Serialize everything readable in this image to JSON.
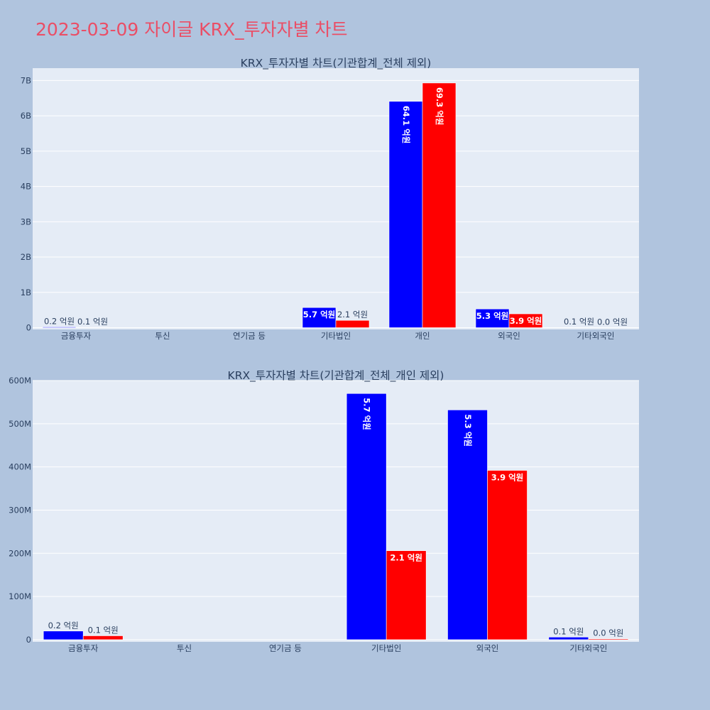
{
  "page": {
    "title": "2023-03-09 자이글 KRX_투자자별 차트"
  },
  "colors": {
    "buy": "#0000ff",
    "sell": "#ff0000",
    "plot_bg": "#e5ecf6",
    "paper_bg": "#b0c4de",
    "title": "#ea4e66",
    "text": "#2a3f5f"
  },
  "chart_data": [
    {
      "type": "bar",
      "title": "KRX_투자자별 차트(기관합계_전체 제외)",
      "categories": [
        "금융투자",
        "투신",
        "연기금 등",
        "기타법인",
        "개인",
        "외국인",
        "기타외국인"
      ],
      "series": [
        {
          "values": [
            20000000,
            0,
            0,
            570000000,
            6410000000,
            530000000,
            6000000
          ],
          "labels": [
            "0.2 억원",
            "",
            "",
            "5.7 억원",
            "64.1 억원",
            "5.3 억원",
            "0.1 억원"
          ]
        },
        {
          "values": [
            9000000,
            0,
            0,
            207000000,
            6930000000,
            392000000,
            2000000
          ],
          "labels": [
            "0.1 억원",
            "",
            "",
            "2.1 억원",
            "69.3 억원",
            "3.9 억원",
            "0.0 억원"
          ]
        }
      ],
      "yticks": [
        0,
        1000000000,
        2000000000,
        3000000000,
        4000000000,
        5000000000,
        6000000000,
        7000000000
      ],
      "ytick_labels": [
        "0",
        "1B",
        "2B",
        "3B",
        "4B",
        "5B",
        "6B",
        "7B"
      ],
      "ylim": [
        -50000000,
        7350000000
      ],
      "grid": true
    },
    {
      "type": "bar",
      "title": "KRX_투자자별 차트(기관합계_전체_개인 제외)",
      "categories": [
        "금융투자",
        "투신",
        "연기금 등",
        "기타법인",
        "외국인",
        "기타외국인"
      ],
      "series": [
        {
          "values": [
            20000000,
            0,
            0,
            570000000,
            532000000,
            6000000
          ],
          "labels": [
            "0.2 억원",
            "",
            "",
            "5.7 억원",
            "5.3 억원",
            "0.1 억원"
          ]
        },
        {
          "values": [
            9000000,
            0,
            0,
            206000000,
            392000000,
            2000000
          ],
          "labels": [
            "0.1 억원",
            "",
            "",
            "2.1 억원",
            "3.9 억원",
            "0.0 억원"
          ]
        }
      ],
      "yticks": [
        0,
        100000000,
        200000000,
        300000000,
        400000000,
        500000000,
        600000000
      ],
      "ytick_labels": [
        "0",
        "100M",
        "200M",
        "300M",
        "400M",
        "500M",
        "600M"
      ],
      "ylim": [
        -5000000,
        600000000
      ],
      "grid": true
    }
  ]
}
